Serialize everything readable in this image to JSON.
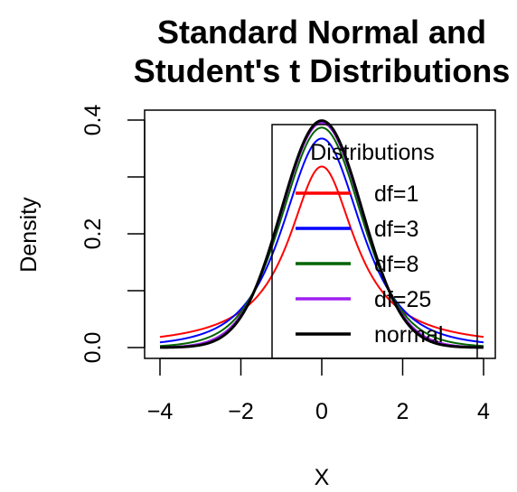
{
  "chart_data": {
    "type": "line",
    "title_lines": [
      "Standard Normal and",
      "Student's t Distributions"
    ],
    "xlabel": "X",
    "ylabel": "Density",
    "xlim": [
      -4,
      4
    ],
    "ylim": [
      0,
      0.4
    ],
    "x_ticks": [
      -4,
      -2,
      0,
      2,
      4
    ],
    "x_tick_labels": [
      "−4",
      "−2",
      "0",
      "2",
      "4"
    ],
    "y_ticks": [
      0.0,
      0.2,
      0.4
    ],
    "y_tick_labels": [
      "0.0",
      "0.2",
      "0.4"
    ],
    "legend": {
      "title": "Distributions",
      "placement": "top-right",
      "entries": [
        "df=1",
        "df=3",
        "df=8",
        "df=25",
        "normal"
      ]
    },
    "series": [
      {
        "name": "df=1",
        "df": 1,
        "color": "#ff0000",
        "x": [
          -4,
          -3,
          -2,
          -1,
          0,
          1,
          2,
          3,
          4
        ],
        "y": [
          0.0187,
          0.0318,
          0.0637,
          0.1592,
          0.3183,
          0.1592,
          0.0637,
          0.0318,
          0.0187
        ]
      },
      {
        "name": "df=3",
        "df": 3,
        "color": "#0000ff",
        "x": [
          -4,
          -3,
          -2,
          -1,
          0,
          1,
          2,
          3,
          4
        ],
        "y": [
          0.0092,
          0.023,
          0.0675,
          0.2067,
          0.3676,
          0.2067,
          0.0675,
          0.023,
          0.0092
        ]
      },
      {
        "name": "df=8",
        "df": 8,
        "color": "#006400",
        "x": [
          -4,
          -3,
          -2,
          -1,
          0,
          1,
          2,
          3,
          4
        ],
        "y": [
          0.003,
          0.013,
          0.0624,
          0.2263,
          0.3867,
          0.2263,
          0.0624,
          0.013,
          0.003
        ]
      },
      {
        "name": "df=25",
        "df": 25,
        "color": "#a020f0",
        "x": [
          -4,
          -3,
          -2,
          -1,
          0,
          1,
          2,
          3,
          4
        ],
        "y": [
          0.0009,
          0.007,
          0.0567,
          0.2366,
          0.395,
          0.2366,
          0.0567,
          0.007,
          0.0009
        ]
      },
      {
        "name": "normal",
        "df": null,
        "color": "#000000",
        "x": [
          -4,
          -3,
          -2,
          -1,
          0,
          1,
          2,
          3,
          4
        ],
        "y": [
          0.0001,
          0.0044,
          0.054,
          0.242,
          0.3989,
          0.242,
          0.054,
          0.0044,
          0.0001
        ]
      }
    ],
    "grid": false
  }
}
